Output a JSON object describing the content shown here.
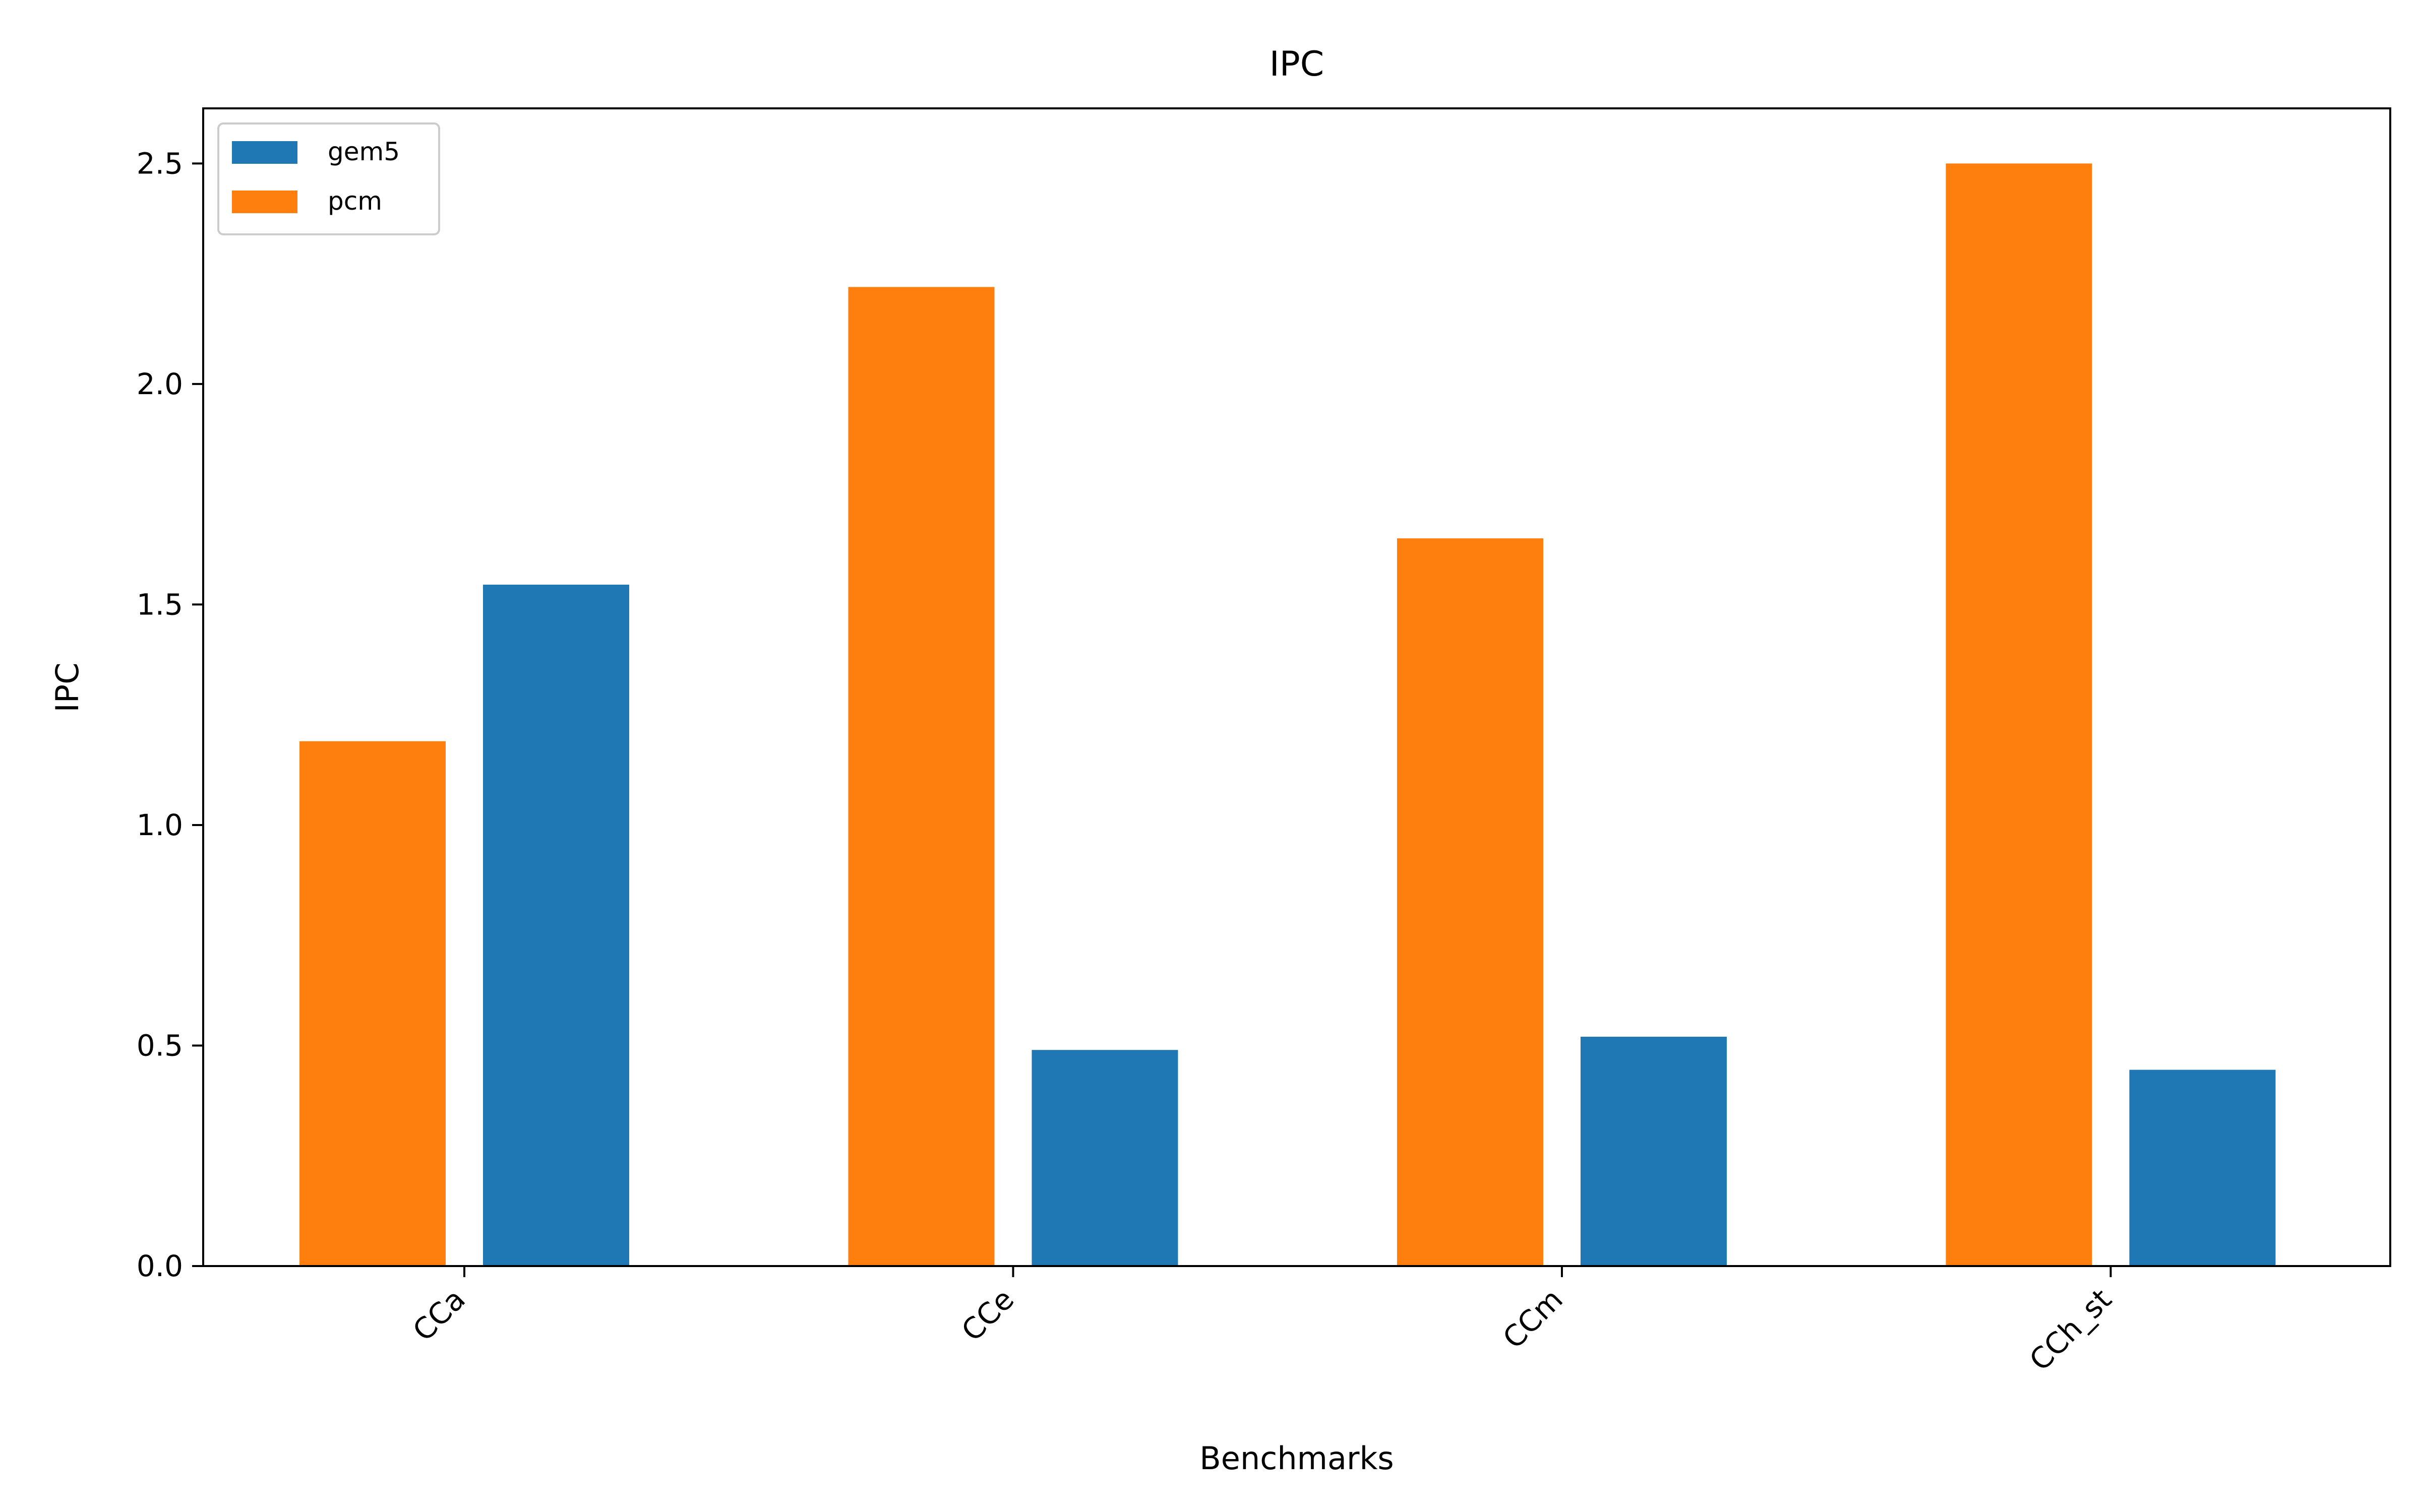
{
  "chart_data": {
    "type": "bar",
    "title": "IPC",
    "xlabel": "Benchmarks",
    "ylabel": "IPC",
    "categories": [
      "CCa",
      "CCe",
      "CCm",
      "CCh_st"
    ],
    "series": [
      {
        "name": "pcm",
        "values": [
          1.19,
          2.22,
          1.65,
          2.5
        ],
        "color": "#ff7f0e"
      },
      {
        "name": "gem5",
        "values": [
          1.545,
          0.49,
          0.52,
          0.445
        ],
        "color": "#1f77b4"
      }
    ],
    "legend_entries": [
      {
        "name": "gem5",
        "color": "#1f77b4"
      },
      {
        "name": "pcm",
        "color": "#ff7f0e"
      }
    ],
    "ylim": [
      0,
      2.625
    ],
    "yticks": [
      "0.0",
      "0.5",
      "1.0",
      "1.5",
      "2.0",
      "2.5"
    ],
    "ytick_values": [
      0,
      0.5,
      1.0,
      1.5,
      2.0,
      2.5
    ],
    "grid": false,
    "legend_position": "top-left",
    "xtick_rotation": "45-degree"
  }
}
